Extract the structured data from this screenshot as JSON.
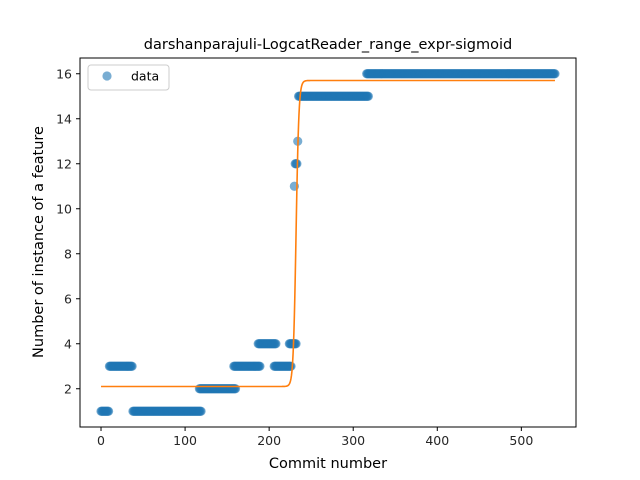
{
  "chart_data": {
    "type": "scatter",
    "title": "darshanparajuli-LogcatReader_range_expr-sigmoid",
    "xlabel": "Commit number",
    "ylabel": "Number of instance of a feature",
    "xlim": [
      -25,
      565
    ],
    "ylim": [
      0.3,
      16.7
    ],
    "xticks": [
      0,
      100,
      200,
      300,
      400,
      500
    ],
    "yticks": [
      2,
      4,
      6,
      8,
      10,
      12,
      14,
      16
    ],
    "grid": false,
    "legend_position": "top-left",
    "colors": {
      "data": "#1f77b4",
      "fit": "#ff7f0e"
    },
    "series": [
      {
        "name": "data",
        "kind": "scatter",
        "segments": [
          {
            "x_start": 0,
            "x_end": 9,
            "y": 1
          },
          {
            "x_start": 10,
            "x_end": 37,
            "y": 3
          },
          {
            "x_start": 38,
            "x_end": 119,
            "y": 1
          },
          {
            "x_start": 117,
            "x_end": 160,
            "y": 2
          },
          {
            "x_start": 158,
            "x_end": 189,
            "y": 3
          },
          {
            "x_start": 187,
            "x_end": 208,
            "y": 4
          },
          {
            "x_start": 206,
            "x_end": 226,
            "y": 3
          },
          {
            "x_start": 224,
            "x_end": 232,
            "y": 4
          },
          {
            "x_start": 230,
            "x_end": 230,
            "y": 11
          },
          {
            "x_start": 231,
            "x_end": 233,
            "y": 12
          },
          {
            "x_start": 234,
            "x_end": 234,
            "y": 13
          },
          {
            "x_start": 235,
            "x_end": 318,
            "y": 15
          },
          {
            "x_start": 316,
            "x_end": 540,
            "y": 16
          }
        ]
      },
      {
        "name": "",
        "kind": "line",
        "sigmoid": {
          "low": 2.1,
          "high": 15.7,
          "center": 232,
          "steepness": 0.6,
          "x_min": 0,
          "x_max": 540
        }
      }
    ]
  }
}
